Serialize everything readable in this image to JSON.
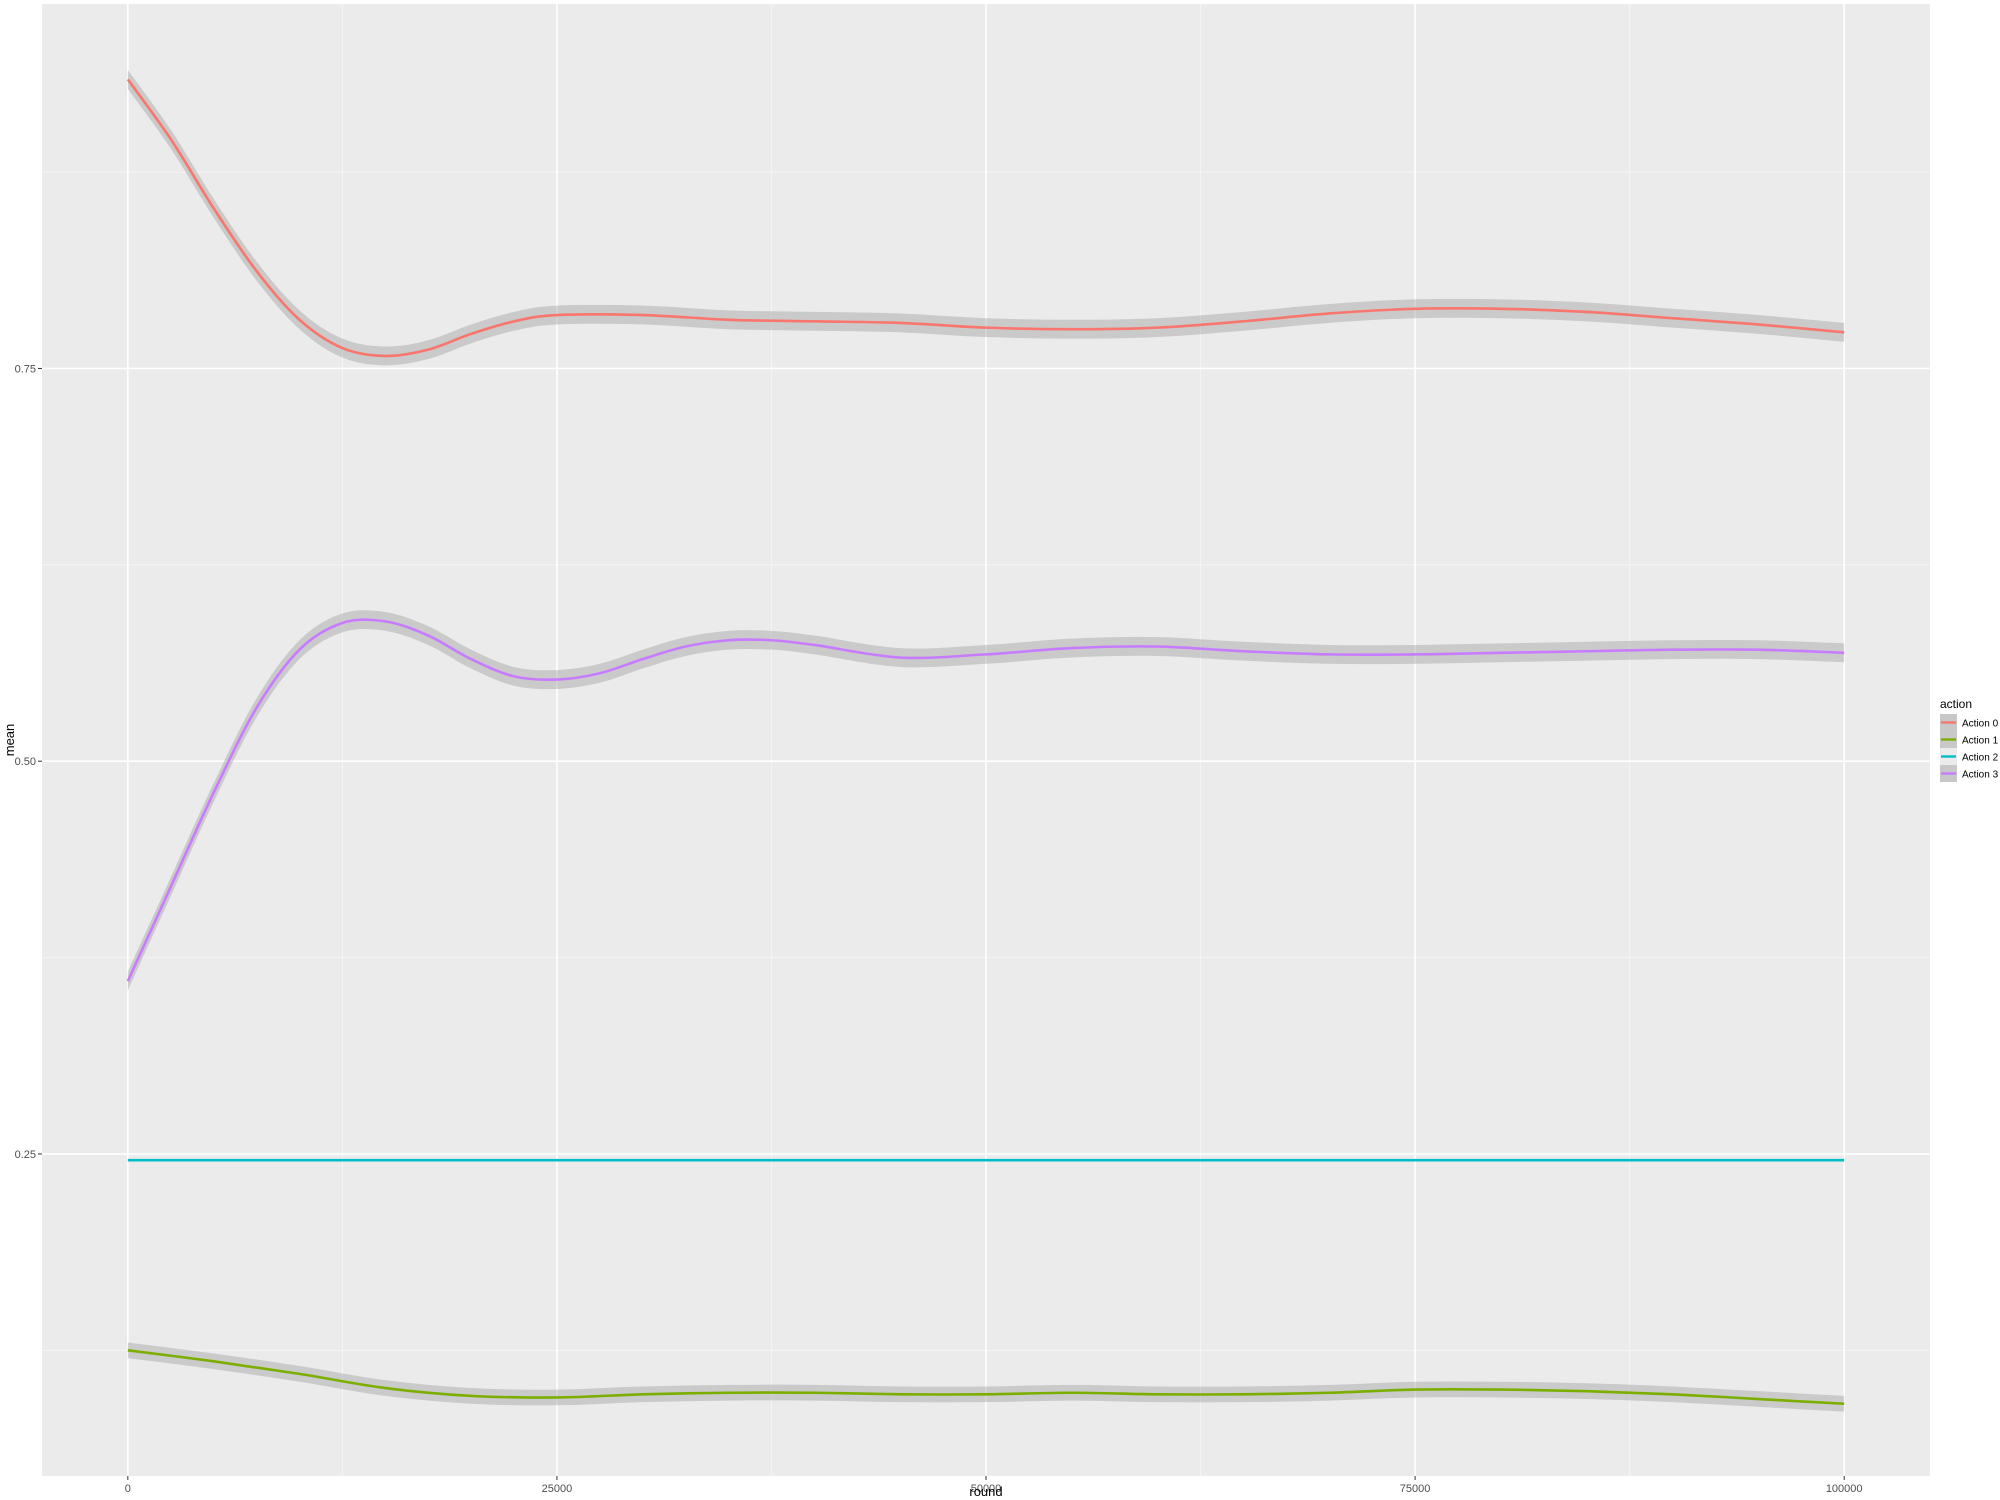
{
  "chart_data": {
    "type": "line",
    "title": "",
    "xlabel": "round",
    "ylabel": "mean",
    "xlim": [
      -5000,
      105000
    ],
    "ylim": [
      0.045,
      0.982
    ],
    "x_ticks": [
      0,
      25000,
      50000,
      75000,
      100000
    ],
    "x_tick_labels": [
      "0",
      "25000",
      "50000",
      "75000",
      "100000"
    ],
    "y_ticks": [
      0.25,
      0.5,
      0.75
    ],
    "y_tick_labels": [
      "0.25",
      "0.50",
      "0.75"
    ],
    "grid": true,
    "confidence_band": true,
    "legend": {
      "title": "action",
      "position": "right"
    },
    "series": [
      {
        "name": "Action 0",
        "color": "#F8766D",
        "x": [
          0,
          2500,
          5000,
          7500,
          10000,
          12500,
          15000,
          17500,
          20000,
          22500,
          25000,
          30000,
          35000,
          40000,
          45000,
          50000,
          55000,
          60000,
          65000,
          70000,
          75000,
          80000,
          85000,
          90000,
          95000,
          100000
        ],
        "y": [
          0.934,
          0.896,
          0.852,
          0.812,
          0.781,
          0.763,
          0.758,
          0.762,
          0.772,
          0.78,
          0.784,
          0.784,
          0.781,
          0.78,
          0.779,
          0.776,
          0.775,
          0.776,
          0.78,
          0.785,
          0.788,
          0.788,
          0.786,
          0.782,
          0.778,
          0.773
        ],
        "band": 0.006
      },
      {
        "name": "Action 1",
        "color": "#7CAE00",
        "x": [
          0,
          5000,
          10000,
          15000,
          20000,
          25000,
          30000,
          35000,
          40000,
          45000,
          50000,
          55000,
          60000,
          65000,
          70000,
          75000,
          80000,
          85000,
          90000,
          95000,
          100000
        ],
        "y": [
          0.125,
          0.118,
          0.11,
          0.101,
          0.096,
          0.095,
          0.097,
          0.098,
          0.098,
          0.097,
          0.097,
          0.098,
          0.097,
          0.097,
          0.098,
          0.1,
          0.1,
          0.099,
          0.097,
          0.094,
          0.091
        ],
        "band": 0.005
      },
      {
        "name": "Action 2",
        "color": "#00BFC4",
        "x": [
          0,
          25000,
          50000,
          75000,
          100000
        ],
        "y": [
          0.246,
          0.246,
          0.246,
          0.246,
          0.246
        ],
        "band": 0.0
      },
      {
        "name": "Action 3",
        "color": "#C77CFF",
        "x": [
          0,
          2500,
          5000,
          7500,
          10000,
          12500,
          15000,
          17500,
          20000,
          22500,
          25000,
          27500,
          30000,
          32500,
          35000,
          37500,
          40000,
          45000,
          50000,
          55000,
          60000,
          65000,
          70000,
          75000,
          80000,
          85000,
          90000,
          95000,
          100000
        ],
        "y": [
          0.36,
          0.42,
          0.48,
          0.534,
          0.571,
          0.588,
          0.589,
          0.58,
          0.565,
          0.554,
          0.552,
          0.556,
          0.565,
          0.573,
          0.577,
          0.577,
          0.574,
          0.566,
          0.568,
          0.572,
          0.573,
          0.57,
          0.568,
          0.568,
          0.569,
          0.57,
          0.571,
          0.571,
          0.569
        ],
        "band": 0.006
      }
    ]
  }
}
